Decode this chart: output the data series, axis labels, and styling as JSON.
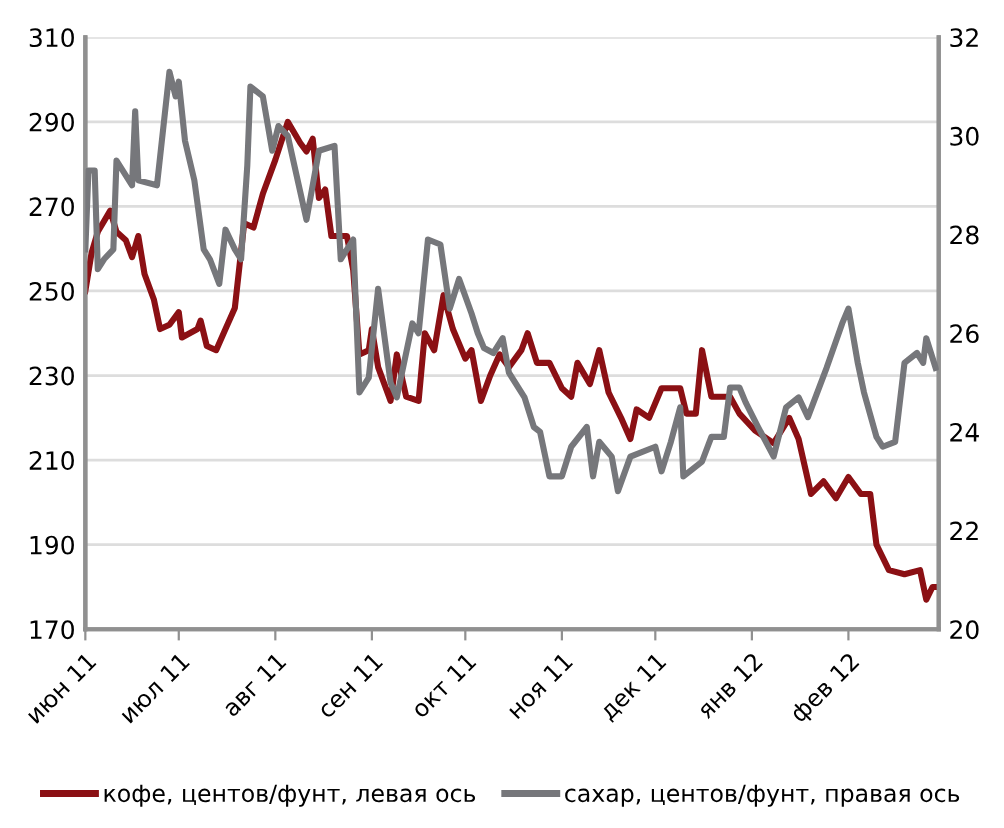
{
  "chart_data": {
    "type": "line",
    "xlim": [
      "2011-06-01",
      "2012-03-01"
    ],
    "xticks": [
      {
        "value": "2011-06-01",
        "label": "июн 11"
      },
      {
        "value": "2011-07-01",
        "label": "июл 11"
      },
      {
        "value": "2011-08-01",
        "label": "авг 11"
      },
      {
        "value": "2011-09-01",
        "label": "сен 11"
      },
      {
        "value": "2011-10-01",
        "label": "окт 11"
      },
      {
        "value": "2011-11-01",
        "label": "ноя 11"
      },
      {
        "value": "2011-12-01",
        "label": "дек 11"
      },
      {
        "value": "2012-01-01",
        "label": "янв 12"
      },
      {
        "value": "2012-02-01",
        "label": "фев 12"
      }
    ],
    "ylim": [
      170,
      310
    ],
    "yticks": [
      170,
      190,
      210,
      230,
      250,
      270,
      290,
      310
    ],
    "y2lim": [
      20,
      32
    ],
    "y2ticks": [
      20,
      22,
      24,
      26,
      28,
      30,
      32
    ],
    "grid": "y",
    "legend": "bottom",
    "line_style": "solid",
    "marker": "none",
    "series": [
      {
        "name": "кофе, центов/фунт, левая ось",
        "color": "#8b1014",
        "x": [
          "2011-06-01",
          "2011-06-03",
          "2011-06-05",
          "2011-06-09",
          "2011-06-11",
          "2011-06-14",
          "2011-06-16",
          "2011-06-18",
          "2011-06-20",
          "2011-06-23",
          "2011-06-25",
          "2011-06-28",
          "2011-07-01",
          "2011-07-02",
          "2011-07-07",
          "2011-07-08",
          "2011-07-10",
          "2011-07-13",
          "2011-07-16",
          "2011-07-19",
          "2011-07-22",
          "2011-07-25",
          "2011-07-28",
          "2011-08-01",
          "2011-08-05",
          "2011-08-09",
          "2011-08-11",
          "2011-08-13",
          "2011-08-15",
          "2011-08-17",
          "2011-08-19",
          "2011-08-24",
          "2011-08-26",
          "2011-08-28",
          "2011-08-31",
          "2011-09-01",
          "2011-09-03",
          "2011-09-07",
          "2011-09-09",
          "2011-09-12",
          "2011-09-16",
          "2011-09-18",
          "2011-09-21",
          "2011-09-24",
          "2011-09-27",
          "2011-10-01",
          "2011-10-03",
          "2011-10-06",
          "2011-10-09",
          "2011-10-12",
          "2011-10-15",
          "2011-10-19",
          "2011-10-21",
          "2011-10-24",
          "2011-10-28",
          "2011-11-01",
          "2011-11-04",
          "2011-11-06",
          "2011-11-10",
          "2011-11-13",
          "2011-11-16",
          "2011-11-20",
          "2011-11-23",
          "2011-11-25",
          "2011-11-29",
          "2011-12-03",
          "2011-12-09",
          "2011-12-11",
          "2011-12-14",
          "2011-12-16",
          "2011-12-19",
          "2011-12-25",
          "2011-12-28",
          "2012-01-02",
          "2012-01-08",
          "2012-01-13",
          "2012-01-16",
          "2012-01-20",
          "2012-01-24",
          "2012-01-28",
          "2012-02-01",
          "2012-02-05",
          "2012-02-08",
          "2012-02-10",
          "2012-02-14",
          "2012-02-19",
          "2012-02-24",
          "2012-02-26",
          "2012-02-28",
          "2012-02-29"
        ],
        "values": [
          250,
          259,
          264,
          269,
          264,
          262,
          258,
          263,
          254,
          248,
          241,
          242,
          245,
          239,
          241,
          243,
          237,
          236,
          241,
          246,
          266,
          265,
          273,
          281,
          290,
          285,
          283,
          286,
          272,
          274,
          263,
          263,
          255,
          235,
          236,
          241,
          232,
          224,
          235,
          225,
          224,
          240,
          236,
          249,
          241,
          234,
          236,
          224,
          230,
          235,
          232,
          236,
          240,
          233,
          233,
          227,
          225,
          233,
          228,
          236,
          226,
          220,
          215,
          222,
          220,
          227,
          227,
          221,
          221,
          236,
          225,
          225,
          221,
          217,
          214,
          220,
          215,
          202,
          205,
          201,
          206,
          202,
          202,
          190,
          184,
          183,
          184,
          177,
          180,
          180
        ]
      },
      {
        "name": "сахар, центов/фунт, правая ось",
        "color": "#76777b",
        "axis": "y2",
        "x": [
          "2011-06-01",
          "2011-06-02",
          "2011-06-04",
          "2011-06-05",
          "2011-06-07",
          "2011-06-10",
          "2011-06-11",
          "2011-06-16",
          "2011-06-17",
          "2011-06-18",
          "2011-06-24",
          "2011-06-28",
          "2011-06-30",
          "2011-07-01",
          "2011-07-03",
          "2011-07-06",
          "2011-07-09",
          "2011-07-11",
          "2011-07-14",
          "2011-07-16",
          "2011-07-19",
          "2011-07-21",
          "2011-07-23",
          "2011-07-24",
          "2011-07-28",
          "2011-07-31",
          "2011-08-02",
          "2011-08-05",
          "2011-08-11",
          "2011-08-15",
          "2011-08-20",
          "2011-08-22",
          "2011-08-26",
          "2011-08-28",
          "2011-08-31",
          "2011-09-03",
          "2011-09-07",
          "2011-09-09",
          "2011-09-14",
          "2011-09-16",
          "2011-09-19",
          "2011-09-23",
          "2011-09-26",
          "2011-09-29",
          "2011-10-03",
          "2011-10-05",
          "2011-10-07",
          "2011-10-10",
          "2011-10-13",
          "2011-10-15",
          "2011-10-20",
          "2011-10-23",
          "2011-10-25",
          "2011-10-28",
          "2011-11-01",
          "2011-11-04",
          "2011-11-09",
          "2011-11-11",
          "2011-11-13",
          "2011-11-17",
          "2011-11-19",
          "2011-11-23",
          "2011-12-01",
          "2011-12-03",
          "2011-12-06",
          "2011-12-09",
          "2011-12-10",
          "2011-12-16",
          "2011-12-19",
          "2011-12-23",
          "2011-12-25",
          "2011-12-28",
          "2011-12-30",
          "2012-01-03",
          "2012-01-08",
          "2012-01-12",
          "2012-01-16",
          "2012-01-19",
          "2012-01-25",
          "2012-01-30",
          "2012-02-01",
          "2012-02-04",
          "2012-02-06",
          "2012-02-10",
          "2012-02-12",
          "2012-02-16",
          "2012-02-19",
          "2012-02-23",
          "2012-02-25",
          "2012-02-26",
          "2012-02-29"
        ],
        "values": [
          27.7,
          29.3,
          29.3,
          27.3,
          27.5,
          27.7,
          29.5,
          29.0,
          30.5,
          29.1,
          29.0,
          31.3,
          30.8,
          31.1,
          29.9,
          29.1,
          27.7,
          27.5,
          27.0,
          28.1,
          27.7,
          27.5,
          29.4,
          31.0,
          30.8,
          29.7,
          30.2,
          30.0,
          28.3,
          29.7,
          29.8,
          27.5,
          27.9,
          24.8,
          25.1,
          26.9,
          25.0,
          24.7,
          26.2,
          26.0,
          27.9,
          27.8,
          26.5,
          27.1,
          26.4,
          26.0,
          25.7,
          25.6,
          25.9,
          25.2,
          24.7,
          24.1,
          24.0,
          23.1,
          23.1,
          23.7,
          24.1,
          23.1,
          23.8,
          23.5,
          22.8,
          23.5,
          23.7,
          23.2,
          23.8,
          24.5,
          23.1,
          23.4,
          23.9,
          23.9,
          24.9,
          24.9,
          24.6,
          24.1,
          23.5,
          24.5,
          24.7,
          24.3,
          25.3,
          26.2,
          26.5,
          25.4,
          24.8,
          23.9,
          23.7,
          23.8,
          25.4,
          25.6,
          25.4,
          25.9,
          25.3
        ]
      }
    ]
  }
}
